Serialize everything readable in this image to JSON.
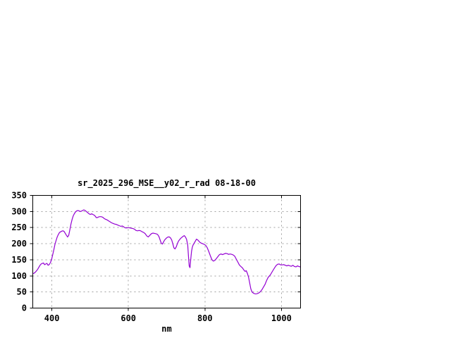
{
  "chart_data": {
    "type": "line",
    "title": "sr_2025_296_MSE__y02_r_rad 08-18-00",
    "xlabel": "nm",
    "ylabel": "",
    "xlim": [
      350,
      1050
    ],
    "ylim": [
      0,
      350
    ],
    "xticks": [
      400,
      600,
      800,
      1000
    ],
    "yticks": [
      0,
      50,
      100,
      150,
      200,
      250,
      300,
      350
    ],
    "grid": true,
    "legend_position": "none",
    "colors": {
      "line": "#9400d3",
      "grid": "#a0a0a0",
      "axis": "#000000",
      "text": "#000000",
      "background": "#ffffff"
    },
    "series": [
      {
        "name": "sr_2025_296_MSE__y02_r_rad",
        "points": [
          [
            351,
            107
          ],
          [
            354,
            109
          ],
          [
            357,
            112
          ],
          [
            360,
            116
          ],
          [
            363,
            121
          ],
          [
            366,
            127
          ],
          [
            369,
            133
          ],
          [
            372,
            137
          ],
          [
            375,
            139
          ],
          [
            378,
            140
          ],
          [
            381,
            135
          ],
          [
            384,
            137
          ],
          [
            387,
            139
          ],
          [
            390,
            133
          ],
          [
            393,
            135
          ],
          [
            396,
            141
          ],
          [
            399,
            150
          ],
          [
            402,
            165
          ],
          [
            405,
            181
          ],
          [
            408,
            198
          ],
          [
            411,
            210
          ],
          [
            414,
            221
          ],
          [
            417,
            229
          ],
          [
            420,
            235
          ],
          [
            423,
            237
          ],
          [
            426,
            239
          ],
          [
            429,
            240
          ],
          [
            432,
            238
          ],
          [
            435,
            232
          ],
          [
            438,
            226
          ],
          [
            441,
            221
          ],
          [
            444,
            226
          ],
          [
            447,
            244
          ],
          [
            450,
            262
          ],
          [
            453,
            276
          ],
          [
            456,
            287
          ],
          [
            459,
            294
          ],
          [
            462,
            299
          ],
          [
            465,
            302
          ],
          [
            468,
            303
          ],
          [
            471,
            302
          ],
          [
            474,
            300
          ],
          [
            477,
            301
          ],
          [
            480,
            303
          ],
          [
            483,
            305
          ],
          [
            486,
            304
          ],
          [
            489,
            301
          ],
          [
            492,
            298
          ],
          [
            495,
            295
          ],
          [
            498,
            292
          ],
          [
            501,
            291
          ],
          [
            504,
            293
          ],
          [
            507,
            291
          ],
          [
            510,
            289
          ],
          [
            513,
            286
          ],
          [
            516,
            281
          ],
          [
            519,
            281
          ],
          [
            522,
            283
          ],
          [
            525,
            284
          ],
          [
            528,
            284
          ],
          [
            531,
            283
          ],
          [
            534,
            281
          ],
          [
            537,
            278
          ],
          [
            540,
            276
          ],
          [
            544,
            274
          ],
          [
            548,
            271
          ],
          [
            552,
            268
          ],
          [
            556,
            265
          ],
          [
            560,
            263
          ],
          [
            564,
            261
          ],
          [
            568,
            260
          ],
          [
            572,
            258
          ],
          [
            576,
            256
          ],
          [
            580,
            254
          ],
          [
            584,
            255
          ],
          [
            588,
            252
          ],
          [
            592,
            249
          ],
          [
            596,
            249
          ],
          [
            600,
            250
          ],
          [
            604,
            249
          ],
          [
            608,
            248
          ],
          [
            612,
            247
          ],
          [
            616,
            245
          ],
          [
            620,
            241
          ],
          [
            624,
            240
          ],
          [
            628,
            241
          ],
          [
            632,
            240
          ],
          [
            636,
            237
          ],
          [
            640,
            235
          ],
          [
            644,
            231
          ],
          [
            648,
            224
          ],
          [
            652,
            221
          ],
          [
            656,
            226
          ],
          [
            660,
            231
          ],
          [
            664,
            233
          ],
          [
            668,
            232
          ],
          [
            672,
            231
          ],
          [
            676,
            229
          ],
          [
            680,
            222
          ],
          [
            683,
            211
          ],
          [
            686,
            201
          ],
          [
            689,
            199
          ],
          [
            692,
            206
          ],
          [
            695,
            212
          ],
          [
            698,
            216
          ],
          [
            701,
            219
          ],
          [
            704,
            221
          ],
          [
            707,
            221
          ],
          [
            710,
            218
          ],
          [
            713,
            212
          ],
          [
            716,
            200
          ],
          [
            719,
            187
          ],
          [
            722,
            184
          ],
          [
            725,
            190
          ],
          [
            728,
            200
          ],
          [
            731,
            208
          ],
          [
            734,
            213
          ],
          [
            737,
            217
          ],
          [
            740,
            220
          ],
          [
            743,
            223
          ],
          [
            746,
            225
          ],
          [
            749,
            221
          ],
          [
            752,
            214
          ],
          [
            755,
            196
          ],
          [
            757,
            162
          ],
          [
            759,
            131
          ],
          [
            761,
            125
          ],
          [
            763,
            152
          ],
          [
            765,
            176
          ],
          [
            767,
            189
          ],
          [
            769,
            196
          ],
          [
            772,
            202
          ],
          [
            775,
            208
          ],
          [
            778,
            214
          ],
          [
            781,
            212
          ],
          [
            784,
            208
          ],
          [
            787,
            204
          ],
          [
            790,
            202
          ],
          [
            794,
            200
          ],
          [
            798,
            198
          ],
          [
            802,
            195
          ],
          [
            806,
            188
          ],
          [
            810,
            176
          ],
          [
            814,
            163
          ],
          [
            818,
            151
          ],
          [
            822,
            146
          ],
          [
            826,
            148
          ],
          [
            830,
            154
          ],
          [
            834,
            160
          ],
          [
            838,
            166
          ],
          [
            842,
            168
          ],
          [
            846,
            166
          ],
          [
            850,
            168
          ],
          [
            854,
            170
          ],
          [
            858,
            169
          ],
          [
            862,
            167
          ],
          [
            866,
            168
          ],
          [
            870,
            167
          ],
          [
            874,
            165
          ],
          [
            878,
            161
          ],
          [
            882,
            152
          ],
          [
            886,
            143
          ],
          [
            890,
            134
          ],
          [
            894,
            129
          ],
          [
            898,
            125
          ],
          [
            902,
            118
          ],
          [
            905,
            114
          ],
          [
            908,
            116
          ],
          [
            911,
            108
          ],
          [
            914,
            96
          ],
          [
            917,
            78
          ],
          [
            920,
            60
          ],
          [
            923,
            50
          ],
          [
            926,
            47
          ],
          [
            929,
            45
          ],
          [
            933,
            44
          ],
          [
            937,
            45
          ],
          [
            941,
            47
          ],
          [
            945,
            51
          ],
          [
            949,
            57
          ],
          [
            953,
            65
          ],
          [
            957,
            73
          ],
          [
            961,
            85
          ],
          [
            965,
            95
          ],
          [
            968,
            99
          ],
          [
            971,
            103
          ],
          [
            974,
            109
          ],
          [
            978,
            117
          ],
          [
            982,
            125
          ],
          [
            986,
            132
          ],
          [
            990,
            136
          ],
          [
            994,
            137
          ],
          [
            998,
            134
          ],
          [
            1002,
            134
          ],
          [
            1006,
            135
          ],
          [
            1010,
            133
          ],
          [
            1014,
            131
          ],
          [
            1018,
            133
          ],
          [
            1022,
            131
          ],
          [
            1026,
            130
          ],
          [
            1030,
            133
          ],
          [
            1034,
            129
          ],
          [
            1038,
            128
          ],
          [
            1042,
            131
          ],
          [
            1046,
            129
          ],
          [
            1049,
            128
          ]
        ]
      }
    ]
  }
}
